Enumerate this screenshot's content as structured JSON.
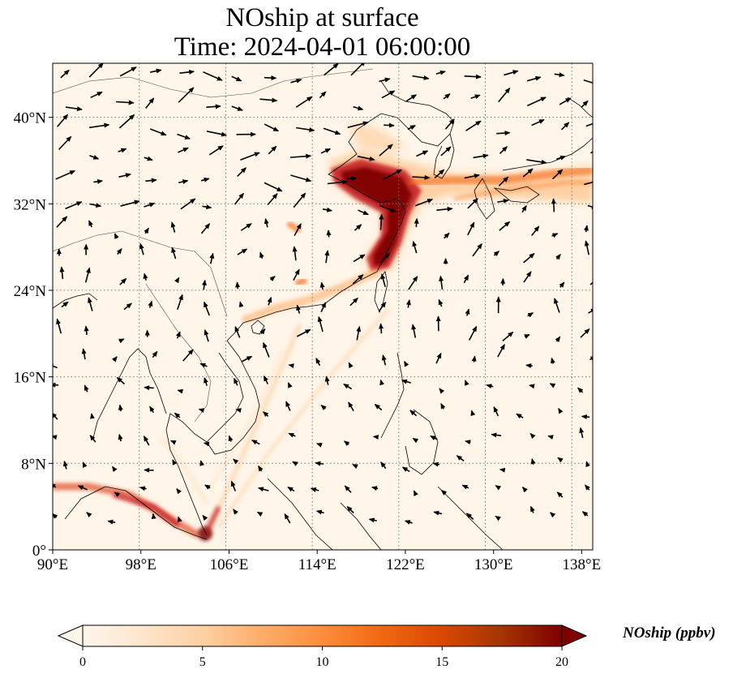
{
  "title": {
    "line1": "NOship at surface",
    "line2": "Time: 2024-04-01 06:00:00"
  },
  "map": {
    "lon_range": [
      90,
      139
    ],
    "lat_range": [
      0,
      45
    ],
    "lon_ticks": [
      {
        "value": 90,
        "label": "90°E"
      },
      {
        "value": 98,
        "label": "98°E"
      },
      {
        "value": 106,
        "label": "106°E"
      },
      {
        "value": 114,
        "label": "114°E"
      },
      {
        "value": 122,
        "label": "122°E"
      },
      {
        "value": 130,
        "label": "130°E"
      },
      {
        "value": 138,
        "label": "138°E"
      }
    ],
    "lat_ticks": [
      {
        "value": 0,
        "label": "0°"
      },
      {
        "value": 8,
        "label": "8°N"
      },
      {
        "value": 16,
        "label": "16°N"
      },
      {
        "value": 24,
        "label": "24°N"
      },
      {
        "value": 32,
        "label": "32°N"
      },
      {
        "value": 40,
        "label": "40°N"
      }
    ],
    "gridlines": "dotted",
    "field_color_low": "#fff5e8",
    "field_color_high": "#7f0000"
  },
  "colorbar": {
    "label": "NOship (ppbv)",
    "min": 0,
    "max": 20,
    "ticks": [
      {
        "value": 0,
        "label": "0"
      },
      {
        "value": 5,
        "label": "5"
      },
      {
        "value": 10,
        "label": "10"
      },
      {
        "value": 15,
        "label": "15"
      },
      {
        "value": 20,
        "label": "20"
      }
    ],
    "extend": "both",
    "colors": [
      "#fff5eb",
      "#fee6ce",
      "#fdd0a2",
      "#fdae6b",
      "#fd8d3c",
      "#f16913",
      "#d94801",
      "#a63603",
      "#7f0000"
    ]
  }
}
